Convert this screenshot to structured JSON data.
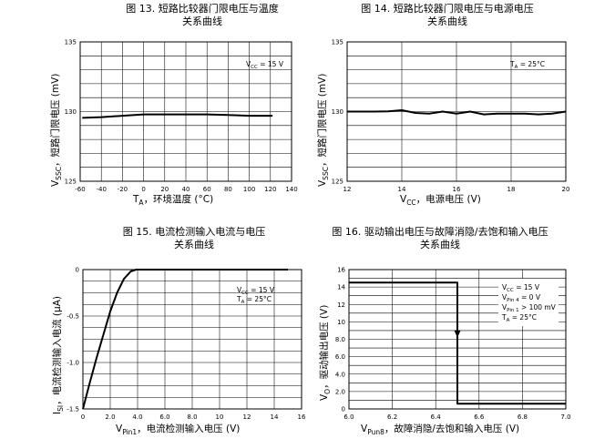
{
  "chart_data": [
    {
      "type": "line",
      "title": "图 13. 短路比较器门限电压与温度",
      "subtitle": "关系曲线",
      "xlabel": "T_A，环境温度 (°C)",
      "ylabel": "V_SSC，短路门限电压 (mV)",
      "xlim": [
        -60,
        140
      ],
      "ylim": [
        125,
        135
      ],
      "x_tick_labels": [
        "-60",
        "-40",
        "-20",
        "0",
        "20",
        "40",
        "60",
        "80",
        "100",
        "120",
        "140"
      ],
      "y_tick_labels": [
        "125",
        "130",
        "135"
      ],
      "annotation": "V_CC = 15 V",
      "grid": true,
      "series": [
        {
          "x": [
            -58,
            -40,
            -20,
            0,
            20,
            40,
            60,
            80,
            100,
            122
          ],
          "y": [
            129.55,
            129.6,
            129.7,
            129.8,
            129.8,
            129.8,
            129.8,
            129.75,
            129.7,
            129.7
          ]
        }
      ]
    },
    {
      "type": "line",
      "title": "图 14. 短路比较器门限电压与电源电压",
      "subtitle": "关系曲线",
      "xlabel": "V_CC，电源电压 (V)",
      "ylabel": "V_SSC，短路门限电压 (mV)",
      "xlim": [
        12,
        20
      ],
      "ylim": [
        125,
        135
      ],
      "x_tick_labels": [
        "12",
        "14",
        "16",
        "18",
        "20"
      ],
      "y_tick_labels": [
        "125",
        "130",
        "135"
      ],
      "annotation": "T_A = 25°C",
      "grid": true,
      "series": [
        {
          "x": [
            12,
            12.5,
            13,
            13.5,
            14,
            14.5,
            15,
            15.5,
            16,
            16.5,
            17,
            17.5,
            18,
            18.5,
            19,
            19.5,
            20
          ],
          "y": [
            130,
            130,
            130,
            130.02,
            130.1,
            129.9,
            129.85,
            130,
            129.85,
            130,
            129.8,
            129.85,
            129.85,
            129.85,
            129.8,
            129.85,
            130
          ]
        }
      ]
    },
    {
      "type": "line",
      "title": "图 15. 电流检测输入电流与电压",
      "subtitle": "关系曲线",
      "xlabel": "V_Pin1，电流检测输入电压 (V)",
      "ylabel": "I_SI，电流检测输入电流 (μA)",
      "xlim": [
        0,
        16
      ],
      "ylim": [
        -1.5,
        0
      ],
      "x_tick_labels": [
        "0",
        "2.0",
        "4.0",
        "6.0",
        "8.0",
        "10",
        "12",
        "14",
        "16"
      ],
      "y_tick_labels": [
        "0",
        "-0.5",
        "-1.0",
        "-1.5"
      ],
      "annotation": "V_CC = 15 V / T_A = 25°C",
      "grid": true,
      "series": [
        {
          "x": [
            0,
            0.5,
            1,
            1.5,
            2,
            2.5,
            3,
            3.5,
            3.9,
            15
          ],
          "y": [
            -1.5,
            -1.22,
            -0.95,
            -0.7,
            -0.45,
            -0.25,
            -0.1,
            -0.02,
            0,
            0
          ]
        }
      ]
    },
    {
      "type": "line",
      "title": "图 16. 驱动输出电压与故障消隐/去饱和输入电压",
      "subtitle": "关系曲线",
      "xlabel": "V_Pun8，故障消隐/去饱和输入电压 (V)",
      "ylabel": "V_O，驱动输出电压 (V)",
      "xlim": [
        6.0,
        7.0
      ],
      "ylim": [
        0,
        16
      ],
      "x_tick_labels": [
        "6.0",
        "6.2",
        "6.4",
        "6.6",
        "6.8",
        "7.0"
      ],
      "y_tick_labels": [
        "0",
        "2.0",
        "4.0",
        "6.0",
        "8.0",
        "10",
        "12",
        "14",
        "16"
      ],
      "annotation": "V_CC = 15 V / V_Pin 4 = 0 V / V_Pin 1 > 100 mV / T_A = 25°C",
      "grid": true,
      "series": [
        {
          "x": [
            6.0,
            6.5,
            6.5,
            7.0
          ],
          "y": [
            14.5,
            14.5,
            0.6,
            0.6
          ]
        }
      ]
    }
  ],
  "labels": {
    "f13_title1": "图 13. 短路比较器门限电压与温度",
    "f13_title2": "关系曲线",
    "f13_vcc": "= 15 V",
    "f13_xsuffix": "，环境温度 (°C)",
    "f13_ysuffix": "，短路门限电压 (mV)",
    "f14_title1": "图 14. 短路比较器门限电压与电源电压",
    "f14_title2": "关系曲线",
    "f14_ta": "= 25°C",
    "f14_xsuffix": "，电源电压 (V)",
    "f14_ysuffix": "，短路门限电压 (mV)",
    "f15_title1": "图 15. 电流检测输入电流与电压",
    "f15_title2": "关系曲线",
    "f15_vcc": "= 15 V",
    "f15_ta": "= 25°C",
    "f15_xsuffix": "，电流检测输入电压 (V)",
    "f15_ysuffix": "，电流检测输入电流 (μA)",
    "f16_title1": "图 16. 驱动输出电压与故障消隐/去饱和输入电压",
    "f16_title2": "关系曲线",
    "f16_vcc": "= 15 V",
    "f16_vpin4": "= 0 V",
    "f16_vpin1": "> 100 mV",
    "f16_ta": "= 25°C",
    "f16_xsuffix": "，故障消隐/去饱和输入电压 (V)",
    "f16_ysuffix": "，驱动输出电压 (V)"
  }
}
